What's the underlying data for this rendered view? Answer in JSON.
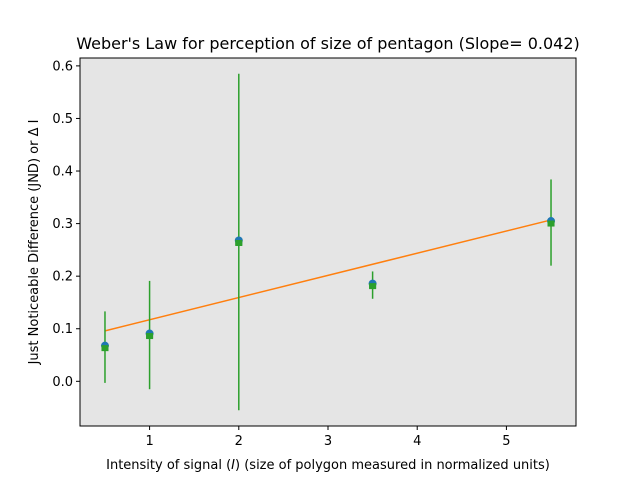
{
  "chart_data": {
    "type": "scatter",
    "title": "Weber's Law for perception of size of pentagon (Slope= 0.042)",
    "xlabel_prefix": "Intensity of signal (",
    "xlabel_var": "I",
    "xlabel_suffix": ") (size of polygon measured in normalized units)",
    "ylabel": "Just Noticeable Difference (JND) or Δ I",
    "xlim": [
      0.22,
      5.78
    ],
    "ylim": [
      -0.085,
      0.615
    ],
    "xticks": [
      1,
      2,
      3,
      4,
      5
    ],
    "yticks": [
      0.0,
      0.1,
      0.2,
      0.3,
      0.4,
      0.5,
      0.6
    ],
    "ytick_labels": [
      "0.0",
      "0.1",
      "0.2",
      "0.3",
      "0.4",
      "0.5",
      "0.6"
    ],
    "grid": false,
    "background_color": "#e5e5e5",
    "points": {
      "x": [
        0.5,
        1.0,
        2.0,
        3.5,
        5.5
      ],
      "y": [
        0.065,
        0.088,
        0.265,
        0.183,
        0.302
      ],
      "color": "#1f77b4"
    },
    "error_bars": {
      "x": [
        0.5,
        1.0,
        2.0,
        3.5,
        5.5
      ],
      "y": [
        0.065,
        0.088,
        0.265,
        0.183,
        0.302
      ],
      "err": [
        0.068,
        0.103,
        0.32,
        0.026,
        0.082
      ],
      "color": "#2ca02c"
    },
    "fit_line": {
      "x": [
        0.5,
        5.5
      ],
      "y": [
        0.096,
        0.307
      ],
      "color": "#ff7f0e"
    }
  }
}
